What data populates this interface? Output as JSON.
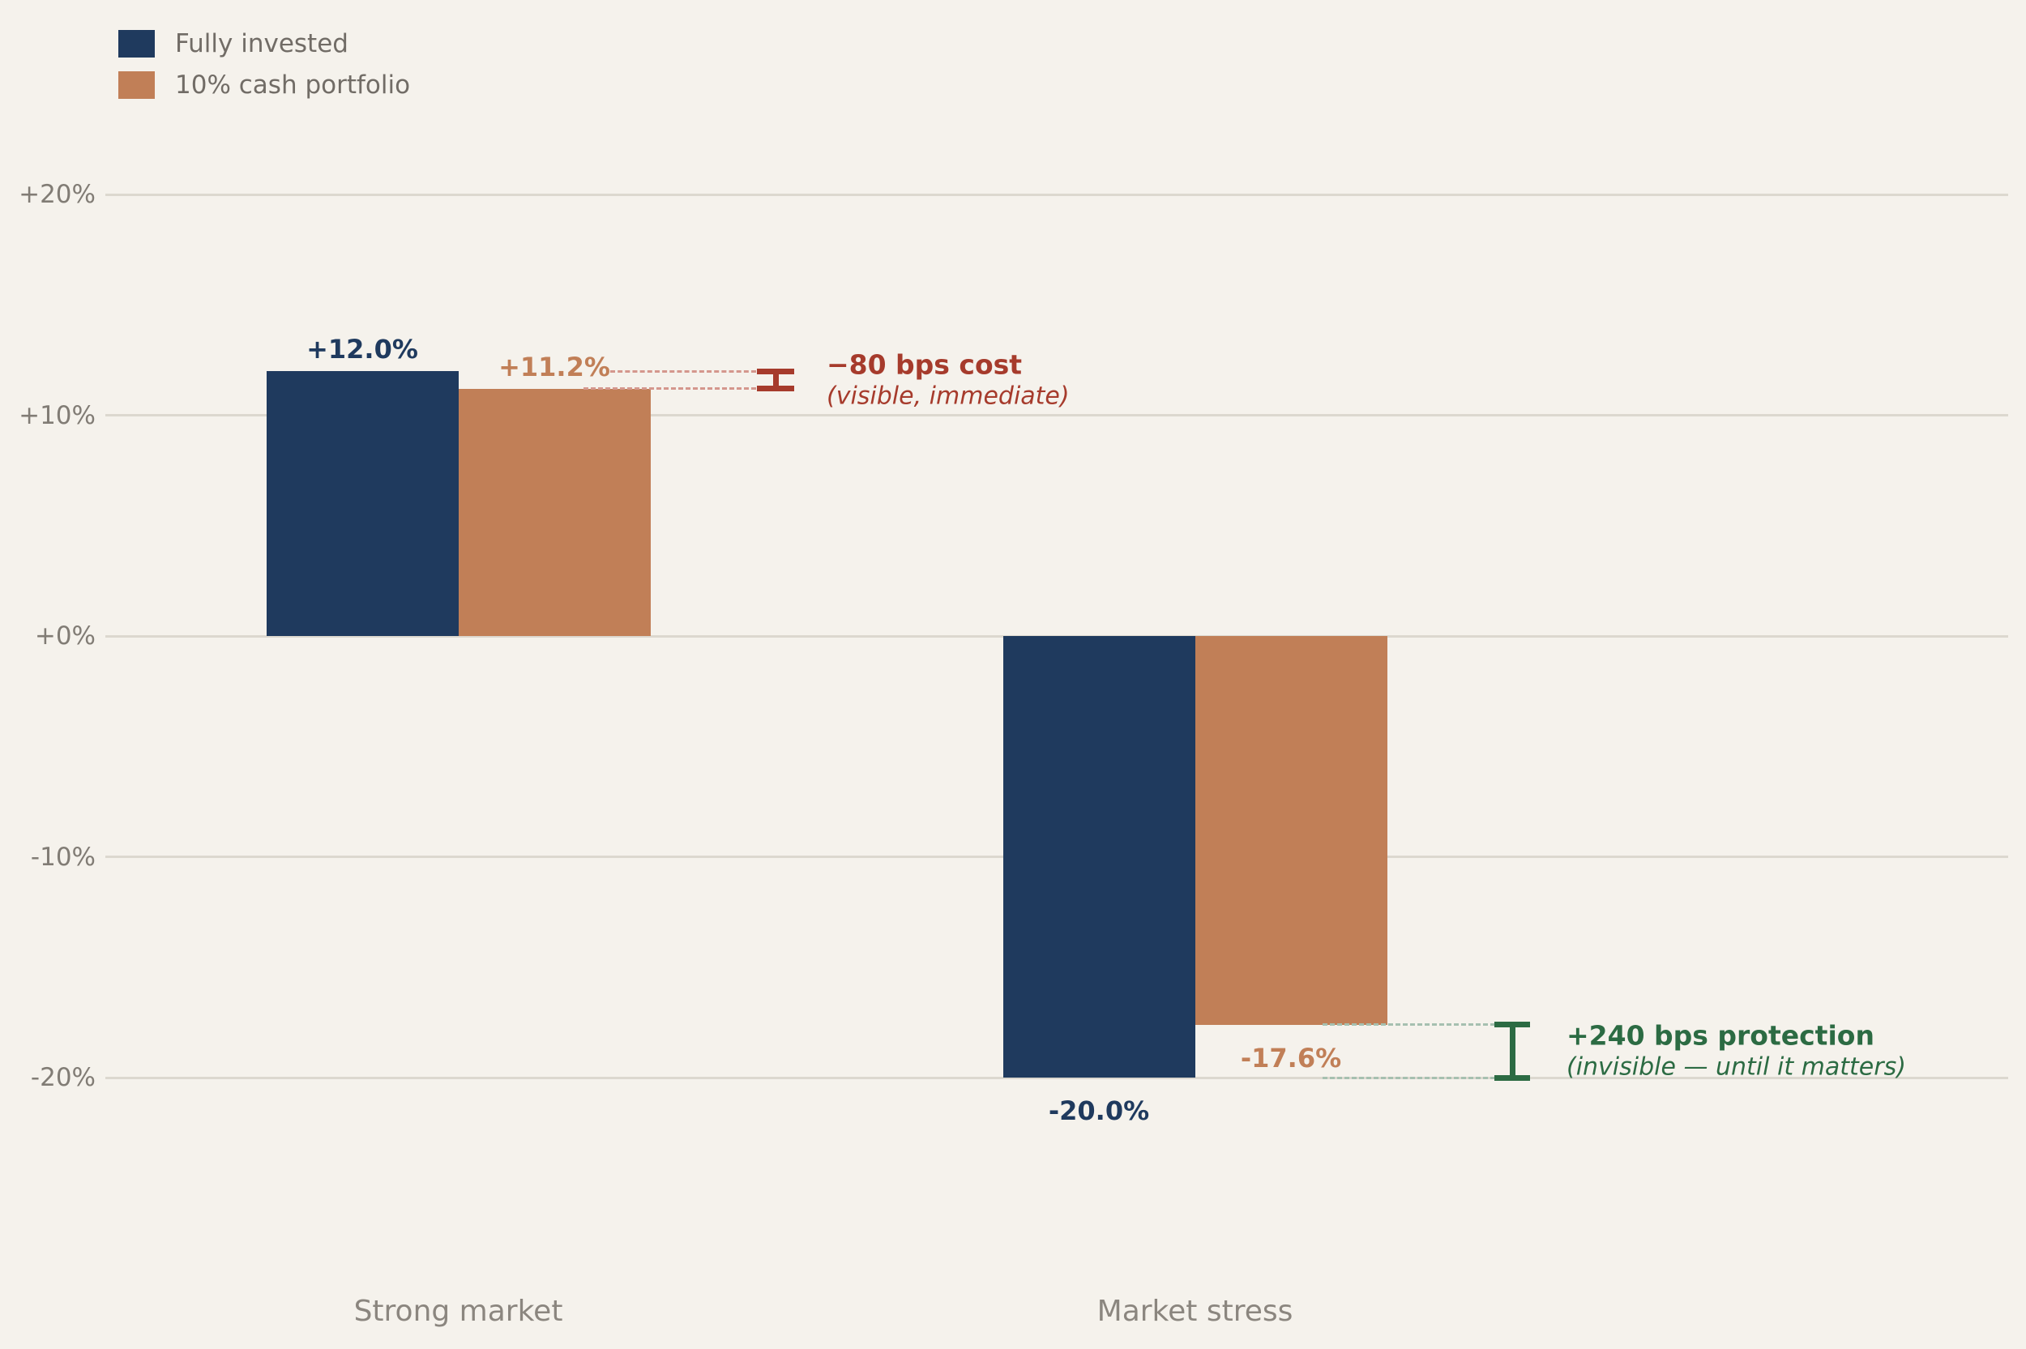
{
  "chart_data": {
    "type": "bar",
    "title": "",
    "categories": [
      "Strong market",
      "Market stress"
    ],
    "series": [
      {
        "name": "Fully invested",
        "color": "#1f3a5e",
        "values": [
          12.0,
          -20.0
        ],
        "value_labels": [
          "+12.0%",
          "-20.0%"
        ]
      },
      {
        "name": "10% cash portfolio",
        "color": "#c17f57",
        "values": [
          11.2,
          -17.6
        ],
        "value_labels": [
          "+11.2%",
          "-17.6%"
        ]
      }
    ],
    "yticks": [
      {
        "value": 20,
        "label": "+20%"
      },
      {
        "value": 10,
        "label": "+10%"
      },
      {
        "value": 0,
        "label": "+0%"
      },
      {
        "value": -10,
        "label": "-10%"
      },
      {
        "value": -20,
        "label": "-20%"
      }
    ],
    "ylim": [
      -24.5,
      21.5
    ],
    "grid": true,
    "legend_position": "upper-left",
    "annotations": [
      {
        "title": "−80 bps cost",
        "subtitle": "(visible, immediate)",
        "color": "#a63b2c",
        "dash_color": "#d4978d",
        "span_values": [
          12.0,
          11.2
        ],
        "group": "Strong market"
      },
      {
        "title": "+240 bps protection",
        "subtitle": "(invisible — until it matters)",
        "color": "#2c6b43",
        "dash_color": "#a6c0b0",
        "span_values": [
          -17.6,
          -20.0
        ],
        "group": "Market stress"
      }
    ]
  },
  "colors": {
    "background": "#f5f2ec",
    "gridline": "#dcd8cf",
    "tick_text": "#817c75",
    "xlabel_text": "#8b867f",
    "legend_text": "#716c66"
  }
}
